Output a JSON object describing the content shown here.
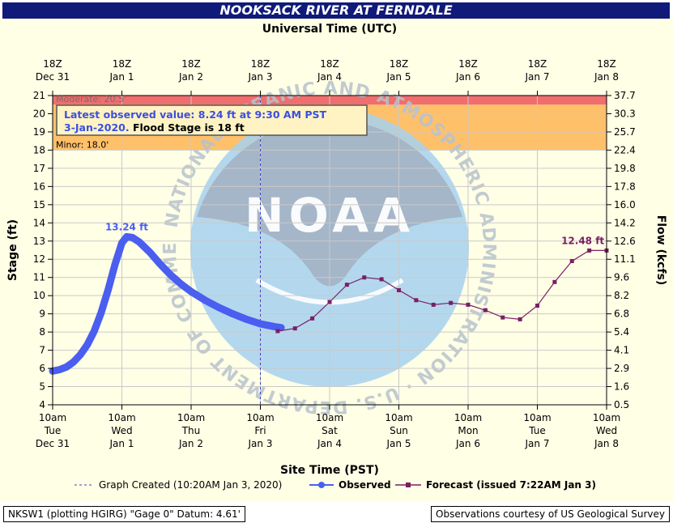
{
  "title": "NOOKSACK RIVER AT FERNDALE",
  "top_axis_label": "Universal Time (UTC)",
  "footer_left": "NKSW1 (plotting HGIRG) \"Gage 0\" Datum: 4.61'",
  "footer_right": "Observations courtesy of US Geological Survey",
  "annotation": {
    "line1": "Latest observed value: 8.24 ft at 9:30 AM PST",
    "line2a": "3-Jan-2020.",
    "line2b": "Flood Stage is 18 ft"
  },
  "watermark": {
    "center_text": "NOAA",
    "ring_text": "NATIONAL OCEANIC AND ATMOSPHERIC ADMINISTRATION · U.S. DEPARTMENT OF COMMERCE"
  },
  "colors": {
    "title_bg": "#101a78",
    "plot_bg": "#ffffe6",
    "minor_band": "#ffc06a",
    "moderate_band": "#ef6e6e",
    "observed": "#4a5ef0",
    "forecast": "#7a1f65",
    "watermark_blue": "#a6d1ef",
    "watermark_gray": "#a3b3c3"
  },
  "chart_data": {
    "type": "line",
    "xlabel": "Site Time (PST)",
    "ylabel": "Stage (ft)",
    "y2label": "Flow (kcfs)",
    "ylim": [
      4,
      21
    ],
    "grid": true,
    "y_ticks": [
      4,
      5,
      6,
      7,
      8,
      9,
      10,
      11,
      12,
      13,
      14,
      15,
      16,
      17,
      18,
      19,
      20,
      21
    ],
    "y2_ticks": [
      {
        "stage": 4,
        "label": "0.5"
      },
      {
        "stage": 5,
        "label": "1.6"
      },
      {
        "stage": 6,
        "label": "2.9"
      },
      {
        "stage": 7,
        "label": "4.1"
      },
      {
        "stage": 8,
        "label": "5.4"
      },
      {
        "stage": 9,
        "label": "6.8"
      },
      {
        "stage": 10,
        "label": "8.2"
      },
      {
        "stage": 11,
        "label": "9.6"
      },
      {
        "stage": 12,
        "label": "11.1"
      },
      {
        "stage": 13,
        "label": "12.6"
      },
      {
        "stage": 14,
        "label": "14.2"
      },
      {
        "stage": 15,
        "label": "16.0"
      },
      {
        "stage": 16,
        "label": "17.8"
      },
      {
        "stage": 17,
        "label": "19.8"
      },
      {
        "stage": 18,
        "label": "22.4"
      },
      {
        "stage": 19,
        "label": "25.7"
      },
      {
        "stage": 20,
        "label": "30.3"
      },
      {
        "stage": 21,
        "label": "37.7"
      }
    ],
    "x_ticks_bottom": [
      {
        "line1": "10am",
        "line2": "Tue",
        "line3": "Dec 31"
      },
      {
        "line1": "10am",
        "line2": "Wed",
        "line3": "Jan 1"
      },
      {
        "line1": "10am",
        "line2": "Thu",
        "line3": "Jan 2"
      },
      {
        "line1": "10am",
        "line2": "Fri",
        "line3": "Jan 3"
      },
      {
        "line1": "10am",
        "line2": "Sat",
        "line3": "Jan 4"
      },
      {
        "line1": "10am",
        "line2": "Sun",
        "line3": "Jan 5"
      },
      {
        "line1": "10am",
        "line2": "Mon",
        "line3": "Jan 6"
      },
      {
        "line1": "10am",
        "line2": "Tue",
        "line3": "Jan 7"
      },
      {
        "line1": "10am",
        "line2": "Wed",
        "line3": "Jan 8"
      }
    ],
    "x_ticks_top": [
      {
        "line1": "18Z",
        "line2": "Dec 31"
      },
      {
        "line1": "18Z",
        "line2": "Jan 1"
      },
      {
        "line1": "18Z",
        "line2": "Jan 2"
      },
      {
        "line1": "18Z",
        "line2": "Jan 3"
      },
      {
        "line1": "18Z",
        "line2": "Jan 4"
      },
      {
        "line1": "18Z",
        "line2": "Jan 5"
      },
      {
        "line1": "18Z",
        "line2": "Jan 6"
      },
      {
        "line1": "18Z",
        "line2": "Jan 7"
      },
      {
        "line1": "18Z",
        "line2": "Jan 8"
      }
    ],
    "flood_categories": [
      {
        "label": "Minor: 18.0'",
        "from": 18.0,
        "to": 20.5,
        "color": "#ffc06a"
      },
      {
        "label": "Moderate: 20.5'",
        "from": 20.5,
        "to": 21.0,
        "color": "#ef6e6e"
      }
    ],
    "graph_created_day": 3.0,
    "series": [
      {
        "name": "Observed",
        "color": "#4a5ef0",
        "peak_label": "13.24 ft",
        "peak": [
          1.07,
          13.24
        ],
        "points": [
          [
            0.0,
            5.85
          ],
          [
            0.1,
            5.93
          ],
          [
            0.2,
            6.08
          ],
          [
            0.3,
            6.35
          ],
          [
            0.4,
            6.75
          ],
          [
            0.5,
            7.3
          ],
          [
            0.6,
            8.05
          ],
          [
            0.7,
            9.05
          ],
          [
            0.8,
            10.3
          ],
          [
            0.9,
            11.7
          ],
          [
            1.0,
            12.9
          ],
          [
            1.07,
            13.24
          ],
          [
            1.15,
            13.2
          ],
          [
            1.25,
            12.95
          ],
          [
            1.4,
            12.4
          ],
          [
            1.55,
            11.75
          ],
          [
            1.7,
            11.15
          ],
          [
            1.85,
            10.65
          ],
          [
            2.0,
            10.22
          ],
          [
            2.2,
            9.75
          ],
          [
            2.4,
            9.35
          ],
          [
            2.6,
            9.0
          ],
          [
            2.8,
            8.7
          ],
          [
            3.0,
            8.45
          ],
          [
            3.2,
            8.3
          ],
          [
            3.3,
            8.24
          ]
        ]
      },
      {
        "name": "Forecast (issued 7:22AM Jan 3)",
        "color": "#7a1f65",
        "peak_label": "12.48 ft",
        "peak": [
          7.75,
          12.48
        ],
        "points": [
          [
            3.25,
            8.05
          ],
          [
            3.5,
            8.2
          ],
          [
            3.75,
            8.75
          ],
          [
            4.0,
            9.65
          ],
          [
            4.25,
            10.6
          ],
          [
            4.5,
            11.0
          ],
          [
            4.75,
            10.9
          ],
          [
            5.0,
            10.3
          ],
          [
            5.25,
            9.75
          ],
          [
            5.5,
            9.5
          ],
          [
            5.75,
            9.6
          ],
          [
            6.0,
            9.5
          ],
          [
            6.25,
            9.2
          ],
          [
            6.5,
            8.8
          ],
          [
            6.75,
            8.7
          ],
          [
            7.0,
            9.45
          ],
          [
            7.25,
            10.75
          ],
          [
            7.5,
            11.9
          ],
          [
            7.75,
            12.48
          ],
          [
            8.0,
            12.48
          ]
        ]
      }
    ],
    "legend": {
      "placement": "bottom",
      "items": [
        {
          "label": "Graph Created (10:20AM Jan 3, 2020)",
          "style": "dashed"
        },
        {
          "label": "Observed",
          "style": "circle"
        },
        {
          "label": "Forecast (issued 7:22AM Jan 3)",
          "style": "square"
        }
      ]
    }
  }
}
